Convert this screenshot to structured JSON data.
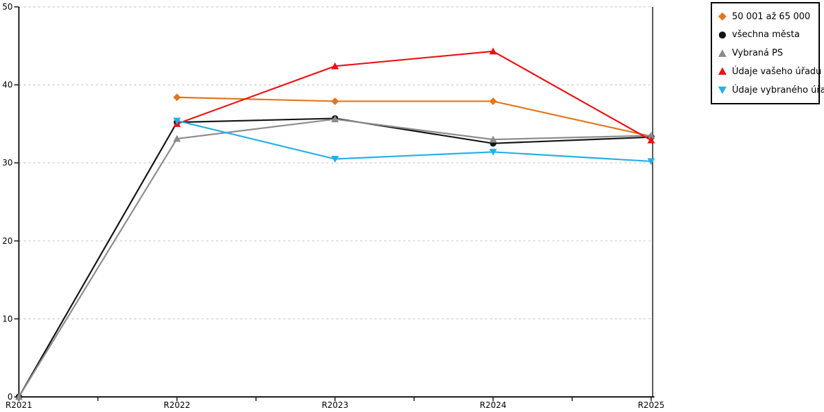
{
  "chart_data": {
    "type": "line",
    "title": "",
    "xlabel": "",
    "ylabel": "",
    "categories": [
      "R2021",
      "R2022",
      "R2023",
      "R2024",
      "R2025"
    ],
    "ylim": [
      0,
      50
    ],
    "yticks": [
      0,
      10,
      20,
      30,
      40,
      50
    ],
    "grid": "horizontal-dashed",
    "grid_color": "#C8C8C8",
    "axis_color": "#1A1A1A",
    "legend_position": "outside-top-right",
    "series": [
      {
        "id": "band-50001-65000",
        "name": "50 001 až 65 000",
        "color": "#E2761E",
        "marker": "diamond",
        "values": [
          null,
          38.4,
          37.9,
          37.9,
          33.4
        ]
      },
      {
        "id": "all-cities",
        "name": "všechna města",
        "color": "#141414",
        "marker": "circle",
        "values": [
          0,
          35.2,
          35.7,
          32.5,
          33.3
        ]
      },
      {
        "id": "selected-ps",
        "name": "Vybraná PS",
        "color": "#8C8C8C",
        "marker": "triangle-up",
        "values": [
          0,
          33.1,
          35.6,
          33.0,
          33.5
        ]
      },
      {
        "id": "your-office",
        "name": "Údaje vašeho úřadu",
        "color": "#EE1111",
        "marker": "triangle-up",
        "values": [
          null,
          35.0,
          42.4,
          44.3,
          32.9
        ]
      },
      {
        "id": "selected-office",
        "name": "Údaje vybraného úřadu",
        "color": "#25AFE8",
        "marker": "triangle-down",
        "values": [
          null,
          35.4,
          30.5,
          31.4,
          30.2
        ]
      }
    ]
  }
}
